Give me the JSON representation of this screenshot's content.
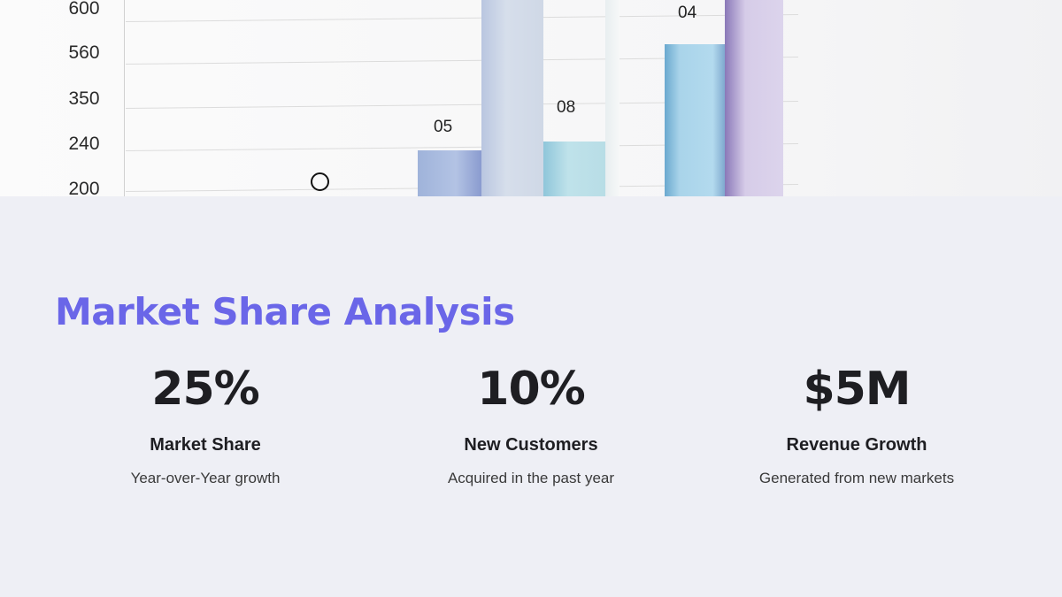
{
  "chart_image": {
    "y_tick_labels": [
      "600",
      "560",
      "350",
      "240",
      "200"
    ],
    "bar_labels": [
      "05",
      "08",
      "04"
    ],
    "colors": {
      "bar_blue_purple": "#a9bbe0",
      "bar_pale": "#d3dcea",
      "bar_cyan": "#b5dde8",
      "bar_sky": "#a8d3ea",
      "bar_lavender": "#d9d0ea"
    }
  },
  "section": {
    "title": "Market Share Analysis",
    "title_color": "#6a66e8"
  },
  "stats": [
    {
      "value": "25%",
      "label": "Market Share",
      "description": "Year-over-Year growth"
    },
    {
      "value": "10%",
      "label": "New Customers",
      "description": "Acquired in the past year"
    },
    {
      "value": "$5M",
      "label": "Revenue Growth",
      "description": "Generated from new markets"
    }
  ]
}
